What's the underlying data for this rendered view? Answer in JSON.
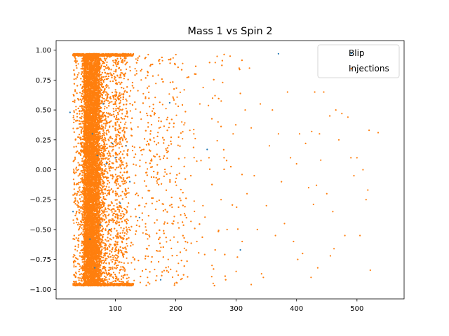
{
  "chart_data": {
    "type": "scatter",
    "title": "Mass 1 vs Spin 2",
    "xlabel": "",
    "ylabel": "",
    "xlim": [
      2,
      578
    ],
    "ylim": [
      -1.08,
      1.08
    ],
    "xticks": [
      100,
      200,
      300,
      400,
      500
    ],
    "yticks": [
      -1.0,
      -0.75,
      -0.5,
      -0.25,
      0.0,
      0.25,
      0.5,
      0.75,
      1.0
    ],
    "xtick_labels": [
      "100",
      "200",
      "300",
      "400",
      "500"
    ],
    "ytick_labels": [
      "−1.00",
      "−0.75",
      "−0.50",
      "−0.25",
      "0.00",
      "0.25",
      "0.50",
      "0.75",
      "1.00"
    ],
    "grid": false,
    "legend_position": "top-right",
    "series": [
      {
        "name": "Blip",
        "color": "#1f77b4",
        "points": [
          [
            25,
            0.48
          ],
          [
            30,
            -0.35
          ],
          [
            58,
            -0.58
          ],
          [
            62,
            0.3
          ],
          [
            66,
            -0.82
          ],
          [
            70,
            0.12
          ],
          [
            75,
            -0.46
          ],
          [
            80,
            0.55
          ],
          [
            85,
            0.05
          ],
          [
            90,
            -0.5
          ],
          [
            95,
            0.22
          ],
          [
            100,
            0.1
          ],
          [
            108,
            -0.28
          ],
          [
            118,
            0.2
          ],
          [
            124,
            -0.1
          ],
          [
            140,
            -0.4
          ],
          [
            175,
            -0.92
          ],
          [
            190,
            0.56
          ],
          [
            252,
            0.17
          ],
          [
            307,
            -0.67
          ],
          [
            370,
            0.97
          ]
        ]
      },
      {
        "name": "Injections",
        "color": "#ff7f0e",
        "points": [
          [
            200,
            0.55
          ],
          [
            210,
            0.4
          ],
          [
            215,
            0.1
          ],
          [
            225,
            -0.05
          ],
          [
            230,
            0.3
          ],
          [
            235,
            -0.6
          ],
          [
            240,
            0.55
          ],
          [
            245,
            -0.3
          ],
          [
            255,
            0.1
          ],
          [
            260,
            -0.8
          ],
          [
            265,
            0.62
          ],
          [
            270,
            0.4
          ],
          [
            275,
            -0.25
          ],
          [
            280,
            0.1
          ],
          [
            285,
            -0.5
          ],
          [
            290,
            0.95
          ],
          [
            295,
            0.3
          ],
          [
            300,
            -0.85
          ],
          [
            305,
            0.85
          ],
          [
            310,
            -0.6
          ],
          [
            315,
            0.5
          ],
          [
            318,
            -0.2
          ],
          [
            322,
            0.85
          ],
          [
            325,
            0.35
          ],
          [
            330,
            -0.05
          ],
          [
            335,
            -0.5
          ],
          [
            340,
            0.55
          ],
          [
            345,
            -0.9
          ],
          [
            350,
            -0.3
          ],
          [
            355,
            0.2
          ],
          [
            360,
            0.5
          ],
          [
            365,
            -0.55
          ],
          [
            370,
            0.3
          ],
          [
            375,
            -0.1
          ],
          [
            380,
            -0.45
          ],
          [
            385,
            0.65
          ],
          [
            390,
            0.1
          ],
          [
            395,
            -0.6
          ],
          [
            400,
            0.05
          ],
          [
            405,
            0.3
          ],
          [
            410,
            -0.7
          ],
          [
            415,
            0.22
          ],
          [
            420,
            -0.15
          ],
          [
            425,
            0.32
          ],
          [
            430,
            0.65
          ],
          [
            435,
            -0.82
          ],
          [
            440,
            0.08
          ],
          [
            445,
            0.65
          ],
          [
            450,
            -0.2
          ],
          [
            455,
            0.45
          ],
          [
            460,
            -0.35
          ],
          [
            465,
            0.5
          ],
          [
            470,
            0.25
          ],
          [
            475,
            0.47
          ],
          [
            480,
            -0.55
          ],
          [
            485,
            0.44
          ],
          [
            490,
            0.1
          ],
          [
            495,
            -0.05
          ],
          [
            500,
            0.1
          ],
          [
            505,
            -0.55
          ],
          [
            510,
            0.0
          ],
          [
            515,
            -0.25
          ],
          [
            518,
            -0.17
          ],
          [
            520,
            0.33
          ],
          [
            522,
            -0.84
          ],
          [
            535,
            0.31
          ],
          [
            402,
            -0.75
          ],
          [
            428,
            -0.29
          ],
          [
            433,
            -0.13
          ],
          [
            462,
            -0.66
          ],
          [
            456,
            -0.72
          ],
          [
            424,
            -0.9
          ],
          [
            438,
            0.3
          ],
          [
            342,
            -0.87
          ],
          [
            325,
            -0.96
          ],
          [
            262,
            -0.95
          ]
        ]
      }
    ]
  }
}
